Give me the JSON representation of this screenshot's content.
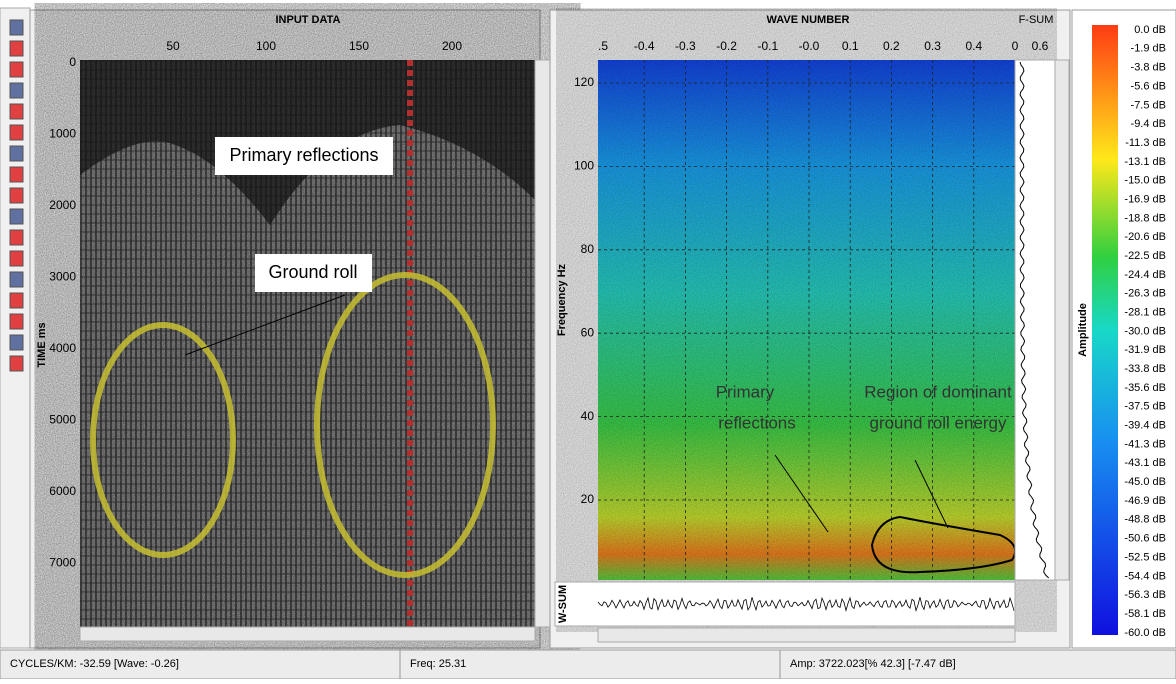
{
  "left_panel": {
    "title": "INPUT DATA",
    "x_ticks": [
      "50",
      "100",
      "150",
      "200"
    ],
    "y_label": "TIME ms",
    "y_ticks": [
      "0",
      "1000",
      "2000",
      "3000",
      "4000",
      "5000",
      "6000",
      "7000"
    ],
    "annotations": [
      "Primary reflections",
      "Ground roll"
    ]
  },
  "right_panel": {
    "title": "WAVE NUMBER",
    "x_ticks": [
      ".5",
      "-0.4",
      "-0.3",
      "-0.2",
      "-0.1",
      "-0.0",
      "0.1",
      "0.2",
      "0.3",
      "0.4",
      "0"
    ],
    "y_label": "Frequency Hz",
    "y_ticks": [
      "120",
      "100",
      "80",
      "60",
      "40",
      "20"
    ],
    "annotations": [
      [
        "Primary",
        "reflections"
      ],
      [
        "Region of dominant",
        "ground roll energy"
      ]
    ]
  },
  "f_sum": {
    "title": "F-SUM",
    "tick": "0.6"
  },
  "w_sum": {
    "title": "W-SUM"
  },
  "colorbar": {
    "title": "Amplitude",
    "labels": [
      "0.0 dB",
      "-1.9 dB",
      "-3.8 dB",
      "-5.6 dB",
      "-7.5 dB",
      "-9.4 dB",
      "-11.3 dB",
      "-13.1 dB",
      "-15.0 dB",
      "-16.9 dB",
      "-18.8 dB",
      "-20.6 dB",
      "-22.5 dB",
      "-24.4 dB",
      "-26.3 dB",
      "-28.1 dB",
      "-30.0 dB",
      "-31.9 dB",
      "-33.8 dB",
      "-35.6 dB",
      "-37.5 dB",
      "-39.4 dB",
      "-41.3 dB",
      "-43.1 dB",
      "-45.0 dB",
      "-46.9 dB",
      "-48.8 dB",
      "-50.6 dB",
      "-52.5 dB",
      "-54.4 dB",
      "-56.3 dB",
      "-58.1 dB",
      "-60.0 dB"
    ]
  },
  "status_bar": [
    "CYCLES/KM: -32.59 [Wave: -0.26]",
    "Freq: 25.31",
    "Amp: 3722.023[% 42.3] [-7.47 dB]"
  ]
}
